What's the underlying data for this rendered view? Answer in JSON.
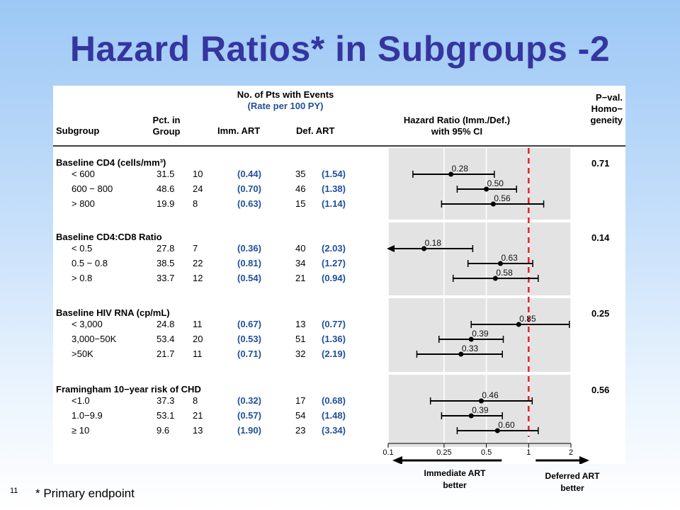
{
  "slide": {
    "title": "Hazard Ratios* in Subgroups  -2",
    "footnote": "* Primary endpoint",
    "slide_number": "11"
  },
  "table_header": {
    "subgroup": "Subgroup",
    "pct_line1": "Pct. in",
    "pct_line2": "Group",
    "events_line1": "No. of Pts with Events",
    "events_line2": "(Rate per 100 PY)",
    "imm": "Imm. ART",
    "def": "Def. ART",
    "hr_line1": "Hazard Ratio (Imm./Def.)",
    "hr_line2": "with 95% CI",
    "p_line1": "P−val.",
    "p_line2": "Homo−",
    "p_line3": "geneity"
  },
  "chart_data": {
    "type": "forest",
    "xscale": "log",
    "xlim": [
      0.1,
      2
    ],
    "xticks": [
      "0.1",
      "0.25",
      "0.5",
      "1",
      "2"
    ],
    "reference_line": 1,
    "x_direction_labels": {
      "left": "Immediate ART better",
      "right": "Deferred ART better"
    },
    "groups": [
      {
        "label": "Baseline CD4 (cells/mm³)",
        "p_value": "0.71",
        "rows": [
          {
            "label": "< 600",
            "pct": "31.5",
            "imm_n": "10",
            "imm_rate": "(0.44)",
            "def_n": "35",
            "def_rate": "(1.54)",
            "hr": 0.28,
            "hr_label": "0.28",
            "lo": 0.15,
            "hi": 0.57
          },
          {
            "label": "600 − 800",
            "pct": "48.6",
            "imm_n": "24",
            "imm_rate": "(0.70)",
            "def_n": "46",
            "def_rate": "(1.38)",
            "hr": 0.5,
            "hr_label": "0.50",
            "lo": 0.31,
            "hi": 0.82
          },
          {
            "label": "> 800",
            "pct": "19.9",
            "imm_n": "8",
            "imm_rate": "(0.63)",
            "def_n": "15",
            "def_rate": "(1.14)",
            "hr": 0.56,
            "hr_label": "0.56",
            "lo": 0.24,
            "hi": 1.28
          }
        ]
      },
      {
        "label": "Baseline CD4:CD8 Ratio",
        "p_value": "0.14",
        "rows": [
          {
            "label": "< 0.5",
            "pct": "27.8",
            "imm_n": "7",
            "imm_rate": "(0.36)",
            "def_n": "40",
            "def_rate": "(2.03)",
            "hr": 0.18,
            "hr_label": "0.18",
            "lo": 0.1,
            "hi": 0.4,
            "arrow_left": true
          },
          {
            "label": "0.5 − 0.8",
            "pct": "38.5",
            "imm_n": "22",
            "imm_rate": "(0.81)",
            "def_n": "34",
            "def_rate": "(1.27)",
            "hr": 0.63,
            "hr_label": "0.63",
            "lo": 0.37,
            "hi": 1.07
          },
          {
            "label": "> 0.8",
            "pct": "33.7",
            "imm_n": "12",
            "imm_rate": "(0.54)",
            "def_n": "21",
            "def_rate": "(0.94)",
            "hr": 0.58,
            "hr_label": "0.58",
            "lo": 0.29,
            "hi": 1.17
          }
        ]
      },
      {
        "label": "Baseline HIV RNA (cp/mL)",
        "p_value": "0.25",
        "rows": [
          {
            "label": "< 3,000",
            "pct": "24.8",
            "imm_n": "11",
            "imm_rate": "(0.67)",
            "def_n": "13",
            "def_rate": "(0.77)",
            "hr": 0.85,
            "hr_label": "0.85",
            "lo": 0.39,
            "hi": 1.95
          },
          {
            "label": "3,000−50K",
            "pct": "53.4",
            "imm_n": "20",
            "imm_rate": "(0.53)",
            "def_n": "51",
            "def_rate": "(1.36)",
            "hr": 0.39,
            "hr_label": "0.39",
            "lo": 0.23,
            "hi": 0.66
          },
          {
            "label": ">50K",
            "pct": "21.7",
            "imm_n": "11",
            "imm_rate": "(0.71)",
            "def_n": "32",
            "def_rate": "(2.19)",
            "hr": 0.33,
            "hr_label": "0.33",
            "lo": 0.16,
            "hi": 0.65
          }
        ]
      },
      {
        "label": "Framingham 10−year risk of CHD",
        "p_value": "0.56",
        "rows": [
          {
            "label": "<1.0",
            "pct": "37.3",
            "imm_n": "8",
            "imm_rate": "(0.32)",
            "def_n": "17",
            "def_rate": "(0.68)",
            "hr": 0.46,
            "hr_label": "0.46",
            "lo": 0.2,
            "hi": 1.06
          },
          {
            "label": "1.0−9.9",
            "pct": "53.1",
            "imm_n": "21",
            "imm_rate": "(0.57)",
            "def_n": "54",
            "def_rate": "(1.48)",
            "hr": 0.39,
            "hr_label": "0.39",
            "lo": 0.24,
            "hi": 0.65
          },
          {
            "label": "≥ 10",
            "pct": "9.6",
            "imm_n": "13",
            "imm_rate": "(1.90)",
            "def_n": "23",
            "def_rate": "(3.34)",
            "hr": 0.6,
            "hr_label": "0.60",
            "lo": 0.31,
            "hi": 1.17
          }
        ]
      }
    ]
  }
}
